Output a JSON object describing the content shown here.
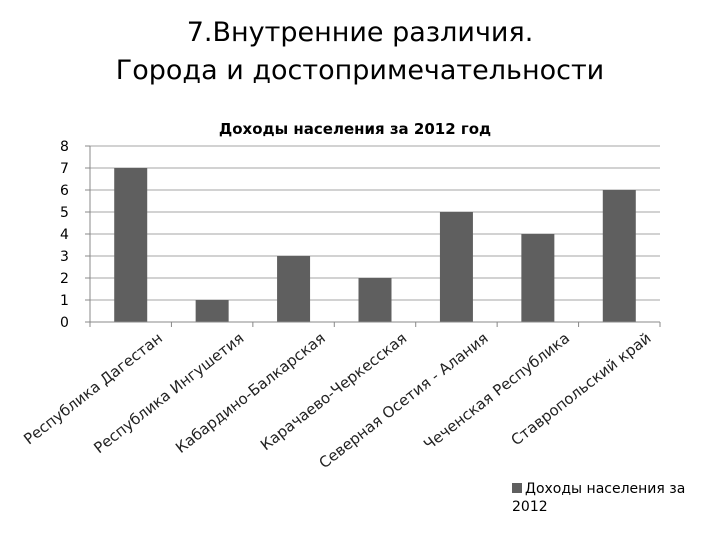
{
  "slide": {
    "title_line1": "7.Внутренние различия.",
    "title_line2": "Города и достопримечательности"
  },
  "chart_data": {
    "type": "bar",
    "title": "Доходы населения за 2012 год",
    "categories": [
      "Республика  Дагестан",
      "Республика Ингушетия",
      "Кабардино-Балкарская",
      "Карачаево-Черкесская",
      "Северная Осетия - Алания",
      "Чеченская Республика",
      "Ставропольский край"
    ],
    "series": [
      {
        "name": "Доходы населения за 2012",
        "values": [
          7,
          1,
          3,
          2,
          5,
          4,
          6
        ]
      }
    ],
    "ylim": [
      0,
      8
    ],
    "yticks": [
      "0",
      "1",
      "2",
      "3",
      "4",
      "5",
      "6",
      "7",
      "8"
    ],
    "xlabel": "",
    "ylabel": "",
    "grid": true,
    "legend_position": "bottom-right",
    "bar_color": "#5f5f5f",
    "grid_color": "#a6a6a6"
  }
}
